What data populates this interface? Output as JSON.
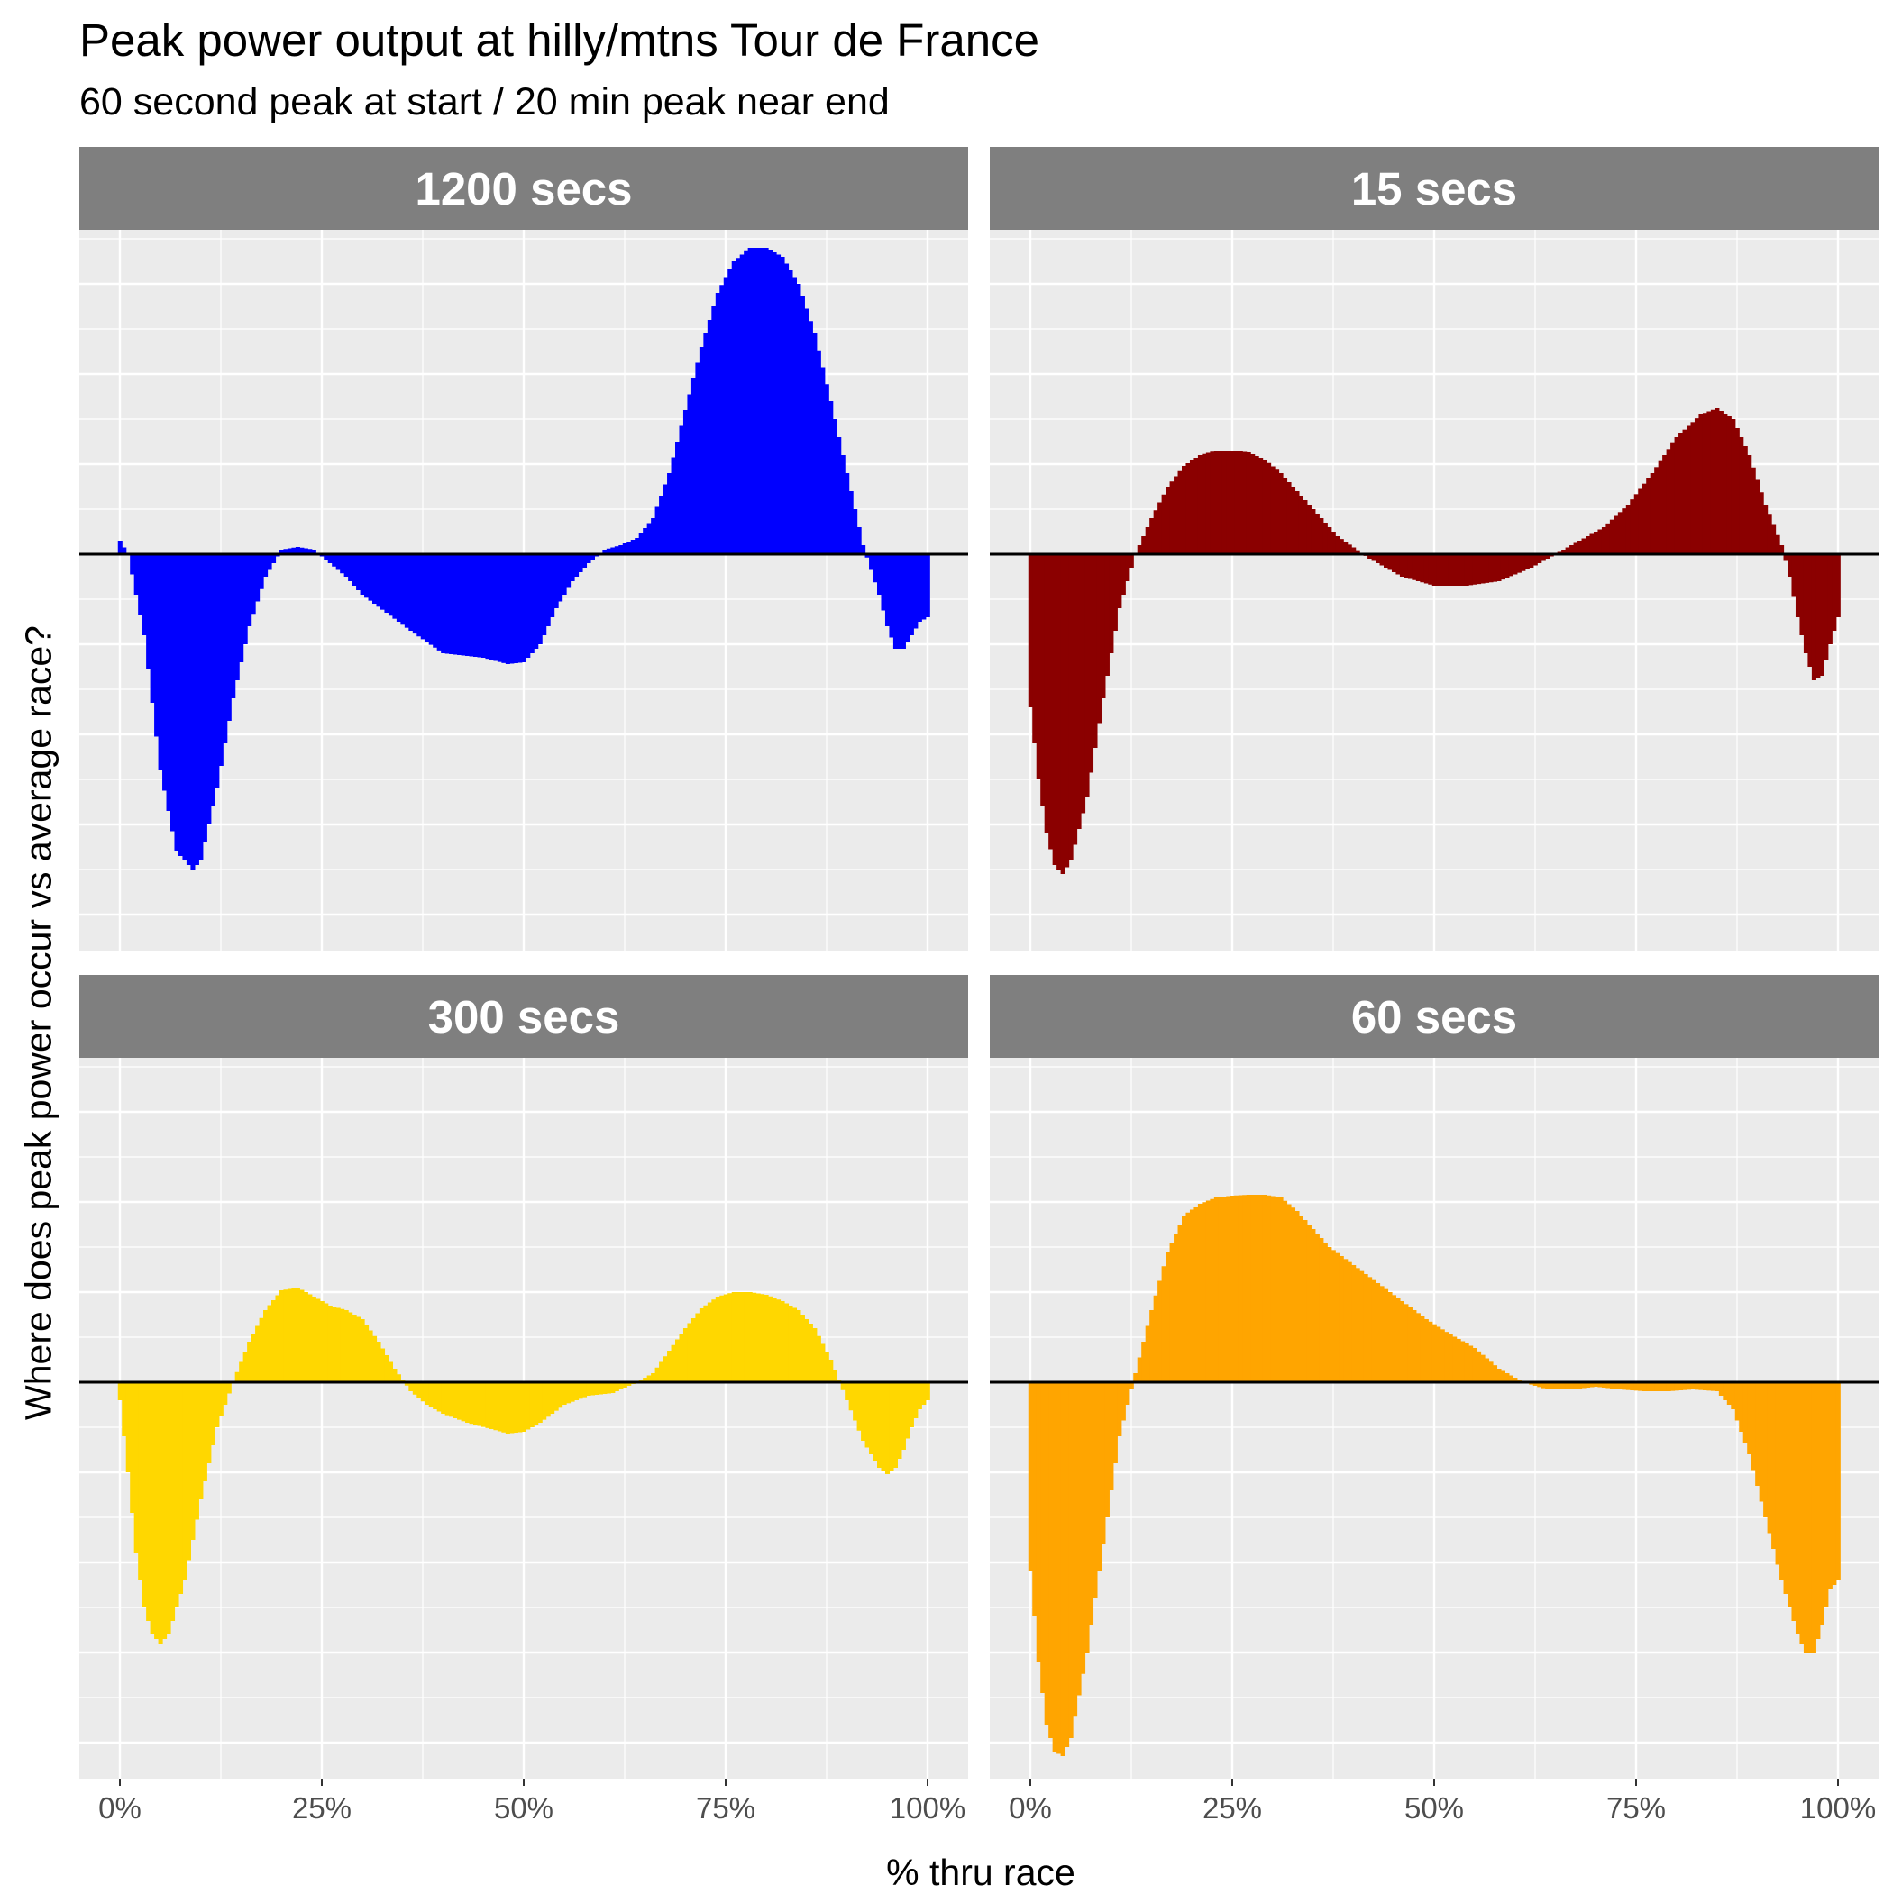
{
  "chart_data": {
    "type": "area",
    "title": "Peak power output at hilly/mtns Tour de France",
    "subtitle": "60 second peak at start / 20 min peak near end",
    "xlabel": "% thru race",
    "ylabel": "Where does peak power occur vs average race?",
    "xlim": [
      0,
      1
    ],
    "x_ticks": [
      "0%",
      "25%",
      "50%",
      "75%",
      "100%"
    ],
    "x_tick_values": [
      0,
      0.25,
      0.5,
      0.75,
      1.0
    ],
    "y_ticks_labeled": false,
    "ylim": [
      -4.4,
      3.6
    ],
    "grid": true,
    "legend": "none",
    "panels": [
      {
        "name": "1200 secs",
        "color": "#0000FF",
        "x": [
          0,
          0.01,
          0.03,
          0.05,
          0.07,
          0.09,
          0.1,
          0.12,
          0.14,
          0.16,
          0.18,
          0.2,
          0.22,
          0.24,
          0.26,
          0.28,
          0.3,
          0.33,
          0.36,
          0.4,
          0.45,
          0.48,
          0.5,
          0.52,
          0.54,
          0.56,
          0.58,
          0.6,
          0.62,
          0.64,
          0.66,
          0.68,
          0.7,
          0.72,
          0.74,
          0.76,
          0.78,
          0.8,
          0.82,
          0.84,
          0.86,
          0.88,
          0.9,
          0.92,
          0.94,
          0.95,
          0.96,
          0.97,
          0.98,
          0.99,
          1.0
        ],
        "y": [
          0.15,
          0.0,
          -0.9,
          -2.4,
          -3.3,
          -3.5,
          -3.4,
          -2.6,
          -1.6,
          -0.8,
          -0.25,
          0.05,
          0.08,
          0.05,
          -0.1,
          -0.25,
          -0.45,
          -0.65,
          -0.85,
          -1.1,
          -1.15,
          -1.22,
          -1.2,
          -1.0,
          -0.6,
          -0.3,
          -0.1,
          0.05,
          0.1,
          0.18,
          0.4,
          0.9,
          1.6,
          2.3,
          2.9,
          3.25,
          3.4,
          3.4,
          3.3,
          3.0,
          2.45,
          1.7,
          0.9,
          0.1,
          -0.45,
          -0.8,
          -1.05,
          -1.05,
          -0.9,
          -0.75,
          -0.7
        ]
      },
      {
        "name": "15 secs",
        "color": "#8B0000",
        "x": [
          0,
          0.01,
          0.02,
          0.03,
          0.04,
          0.05,
          0.07,
          0.09,
          0.11,
          0.13,
          0.15,
          0.17,
          0.19,
          0.21,
          0.23,
          0.25,
          0.27,
          0.29,
          0.31,
          0.33,
          0.35,
          0.38,
          0.42,
          0.46,
          0.5,
          0.54,
          0.58,
          0.62,
          0.65,
          0.68,
          0.71,
          0.74,
          0.77,
          0.8,
          0.83,
          0.85,
          0.87,
          0.89,
          0.91,
          0.93,
          0.94,
          0.95,
          0.96,
          0.97,
          0.98,
          0.99,
          1.0
        ],
        "y": [
          -1.7,
          -2.5,
          -3.1,
          -3.45,
          -3.55,
          -3.4,
          -2.7,
          -1.6,
          -0.6,
          0.0,
          0.4,
          0.75,
          0.98,
          1.1,
          1.15,
          1.15,
          1.13,
          1.05,
          0.9,
          0.7,
          0.5,
          0.2,
          -0.05,
          -0.25,
          -0.35,
          -0.35,
          -0.3,
          -0.15,
          0.0,
          0.15,
          0.3,
          0.55,
          0.9,
          1.3,
          1.55,
          1.62,
          1.5,
          1.1,
          0.55,
          0.1,
          -0.25,
          -0.7,
          -1.1,
          -1.4,
          -1.35,
          -1.0,
          -0.7
        ]
      },
      {
        "name": "300 secs",
        "color": "#FFD700",
        "x": [
          0,
          0.01,
          0.02,
          0.03,
          0.04,
          0.05,
          0.06,
          0.08,
          0.1,
          0.12,
          0.14,
          0.16,
          0.18,
          0.2,
          0.22,
          0.24,
          0.26,
          0.28,
          0.3,
          0.32,
          0.34,
          0.36,
          0.38,
          0.4,
          0.43,
          0.46,
          0.48,
          0.5,
          0.52,
          0.55,
          0.58,
          0.61,
          0.64,
          0.66,
          0.68,
          0.7,
          0.72,
          0.74,
          0.76,
          0.78,
          0.8,
          0.82,
          0.84,
          0.86,
          0.88,
          0.9,
          0.92,
          0.94,
          0.95,
          0.96,
          0.97,
          0.98,
          0.99,
          1.0
        ],
        "y": [
          -0.2,
          -1.0,
          -1.9,
          -2.5,
          -2.8,
          -2.9,
          -2.8,
          -2.2,
          -1.3,
          -0.5,
          0.0,
          0.45,
          0.8,
          1.02,
          1.05,
          0.95,
          0.85,
          0.8,
          0.7,
          0.45,
          0.15,
          -0.1,
          -0.25,
          -0.35,
          -0.45,
          -0.52,
          -0.57,
          -0.55,
          -0.45,
          -0.25,
          -0.15,
          -0.12,
          0.0,
          0.1,
          0.35,
          0.6,
          0.82,
          0.95,
          1.0,
          1.0,
          0.97,
          0.9,
          0.8,
          0.6,
          0.25,
          -0.2,
          -0.65,
          -0.95,
          -1.02,
          -0.95,
          -0.75,
          -0.5,
          -0.3,
          -0.2
        ]
      },
      {
        "name": "60 secs",
        "color": "#FFA500",
        "x": [
          0,
          0.01,
          0.02,
          0.03,
          0.04,
          0.05,
          0.07,
          0.09,
          0.11,
          0.13,
          0.15,
          0.17,
          0.19,
          0.21,
          0.23,
          0.25,
          0.27,
          0.29,
          0.31,
          0.33,
          0.35,
          0.37,
          0.4,
          0.43,
          0.46,
          0.49,
          0.52,
          0.55,
          0.58,
          0.61,
          0.64,
          0.67,
          0.7,
          0.73,
          0.76,
          0.79,
          0.82,
          0.85,
          0.87,
          0.89,
          0.91,
          0.93,
          0.95,
          0.96,
          0.97,
          0.98,
          0.99,
          1.0
        ],
        "y": [
          -2.1,
          -3.1,
          -3.8,
          -4.1,
          -4.15,
          -3.95,
          -3.0,
          -1.8,
          -0.6,
          0.1,
          0.8,
          1.45,
          1.85,
          1.98,
          2.05,
          2.07,
          2.08,
          2.08,
          2.05,
          1.9,
          1.7,
          1.5,
          1.3,
          1.1,
          0.9,
          0.7,
          0.53,
          0.38,
          0.15,
          0.0,
          -0.08,
          -0.08,
          -0.05,
          -0.08,
          -0.1,
          -0.1,
          -0.08,
          -0.1,
          -0.3,
          -0.8,
          -1.5,
          -2.2,
          -2.8,
          -3.0,
          -3.0,
          -2.7,
          -2.3,
          -2.2
        ]
      }
    ]
  }
}
